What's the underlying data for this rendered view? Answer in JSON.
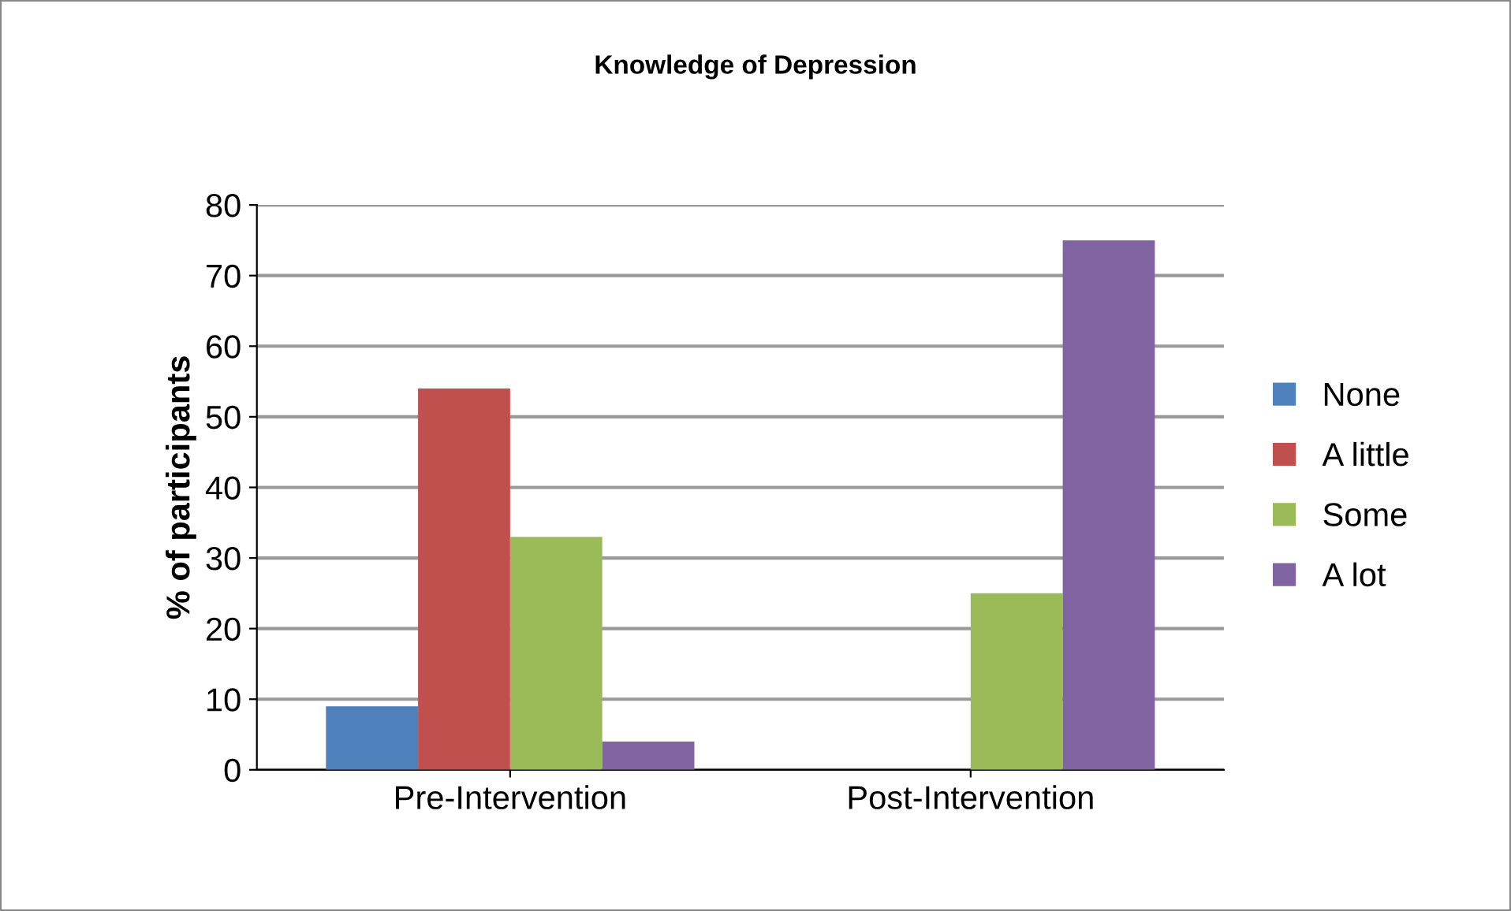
{
  "chart_data": {
    "type": "bar",
    "title": "Knowledge of Depression",
    "ylabel": "% of participants",
    "categories": [
      "Pre-Intervention",
      "Post-Intervention"
    ],
    "series": [
      {
        "name": "None",
        "color": "#4f81bd",
        "values": [
          9,
          0
        ]
      },
      {
        "name": "A little",
        "color": "#c0504d",
        "values": [
          54,
          0
        ]
      },
      {
        "name": "Some",
        "color": "#9bbb59",
        "values": [
          33,
          25
        ]
      },
      {
        "name": "A lot",
        "color": "#8064a2",
        "values": [
          4,
          75
        ]
      }
    ],
    "ylim": [
      0,
      80
    ],
    "yticks": [
      0,
      10,
      20,
      30,
      40,
      50,
      60,
      70,
      80
    ],
    "grid": "y",
    "legend": "right"
  }
}
